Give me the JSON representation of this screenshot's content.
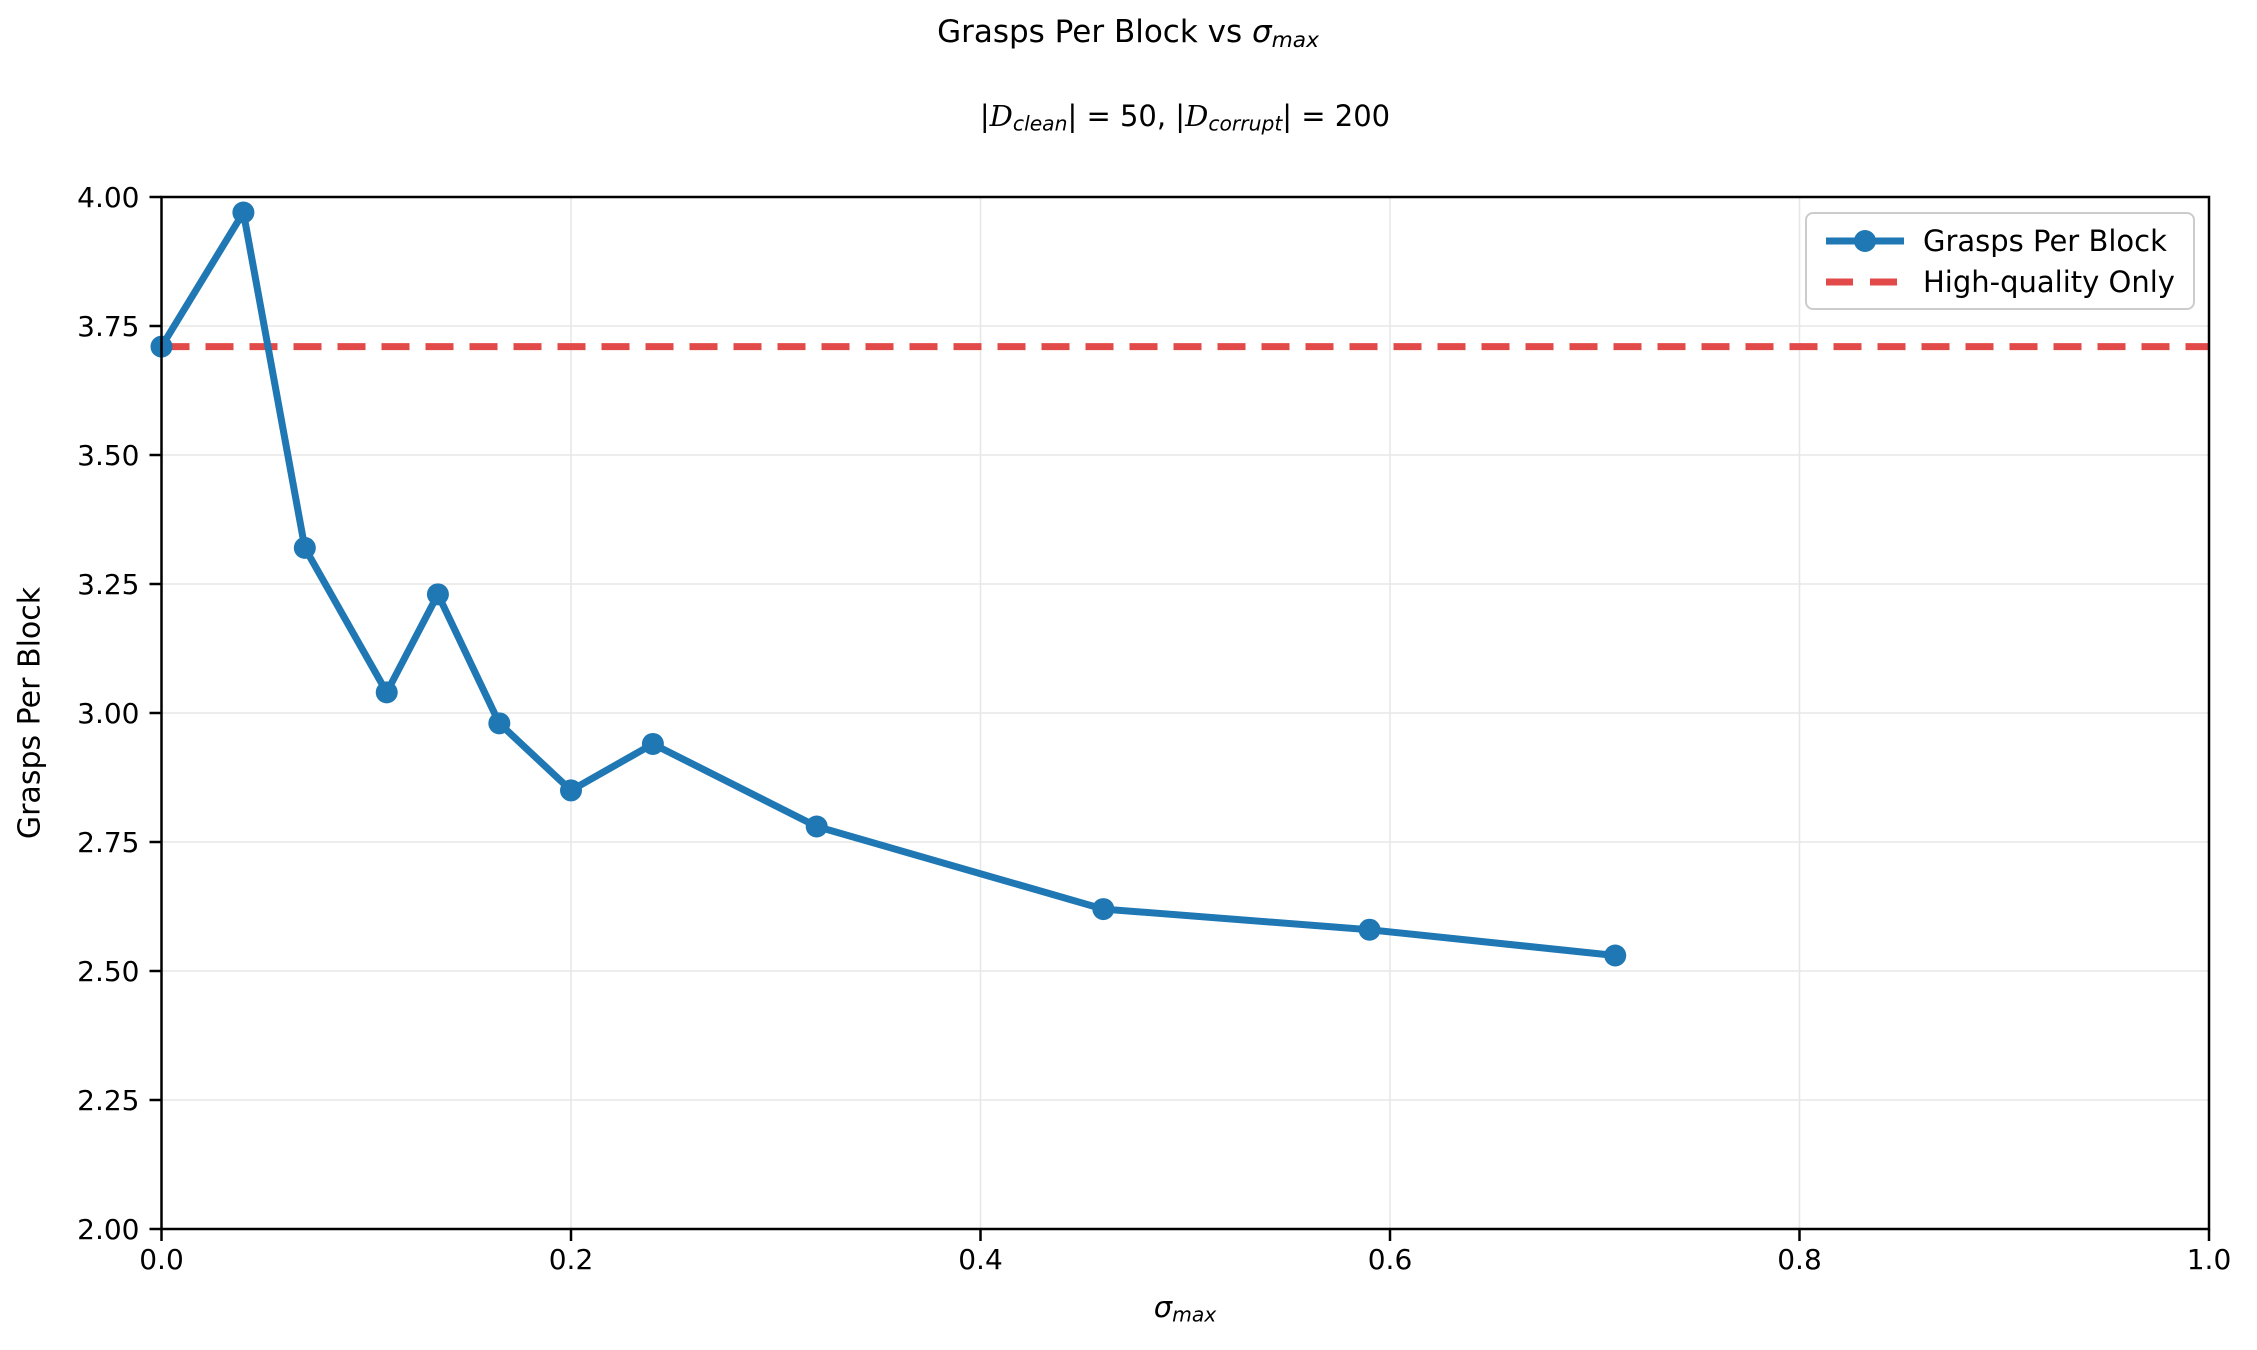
{
  "header": {
    "title_text": "Grasps Per Block vs ",
    "title_sigma": "σ",
    "title_sigma_sub": "max",
    "subtitle": {
      "p1": "|",
      "d1": "D",
      "s1": "clean",
      "p2": "| = 50, |",
      "d2": "D",
      "s2": "corrupt",
      "p3": "| = 200"
    }
  },
  "chart_data": {
    "type": "line",
    "title": "Grasps Per Block vs sigma_max",
    "subtitle": "|D_clean| = 50, |D_corrupt| = 200",
    "xlabel": "sigma_max",
    "xlabel_sigma": "σ",
    "xlabel_sub": "max",
    "ylabel": "Grasps Per Block",
    "axes": {
      "xlim": [
        0.0,
        1.0
      ],
      "ylim": [
        2.0,
        4.0
      ],
      "x_ticks": [
        0.0,
        0.2,
        0.4,
        0.6,
        0.8,
        1.0
      ],
      "x_tick_labels": [
        "0.0",
        "0.2",
        "0.4",
        "0.6",
        "0.8",
        "1.0"
      ],
      "y_ticks": [
        2.0,
        2.25,
        2.5,
        2.75,
        3.0,
        3.25,
        3.5,
        3.75,
        4.0
      ],
      "y_tick_labels": [
        "2.00",
        "2.25",
        "2.50",
        "2.75",
        "3.00",
        "3.25",
        "3.50",
        "3.75",
        "4.00"
      ],
      "grid": true
    },
    "series": [
      {
        "name": "Grasps Per Block",
        "color": "#1f77b4",
        "marker": "circle",
        "x": [
          0.0,
          0.04,
          0.07,
          0.11,
          0.135,
          0.165,
          0.2,
          0.24,
          0.32,
          0.46,
          0.59,
          0.71
        ],
        "y": [
          3.71,
          3.97,
          3.32,
          3.04,
          3.23,
          2.98,
          2.85,
          2.94,
          2.78,
          2.62,
          2.58,
          2.53
        ]
      }
    ],
    "baseline": {
      "name": "High-quality Only",
      "value": 3.71,
      "color": "#e24a4a",
      "style": "dashed"
    },
    "style": {
      "grid_color": "#e7e7e7",
      "spine_color": "#000000",
      "tick_label_color": "#000000",
      "legend_position": "upper right"
    }
  }
}
